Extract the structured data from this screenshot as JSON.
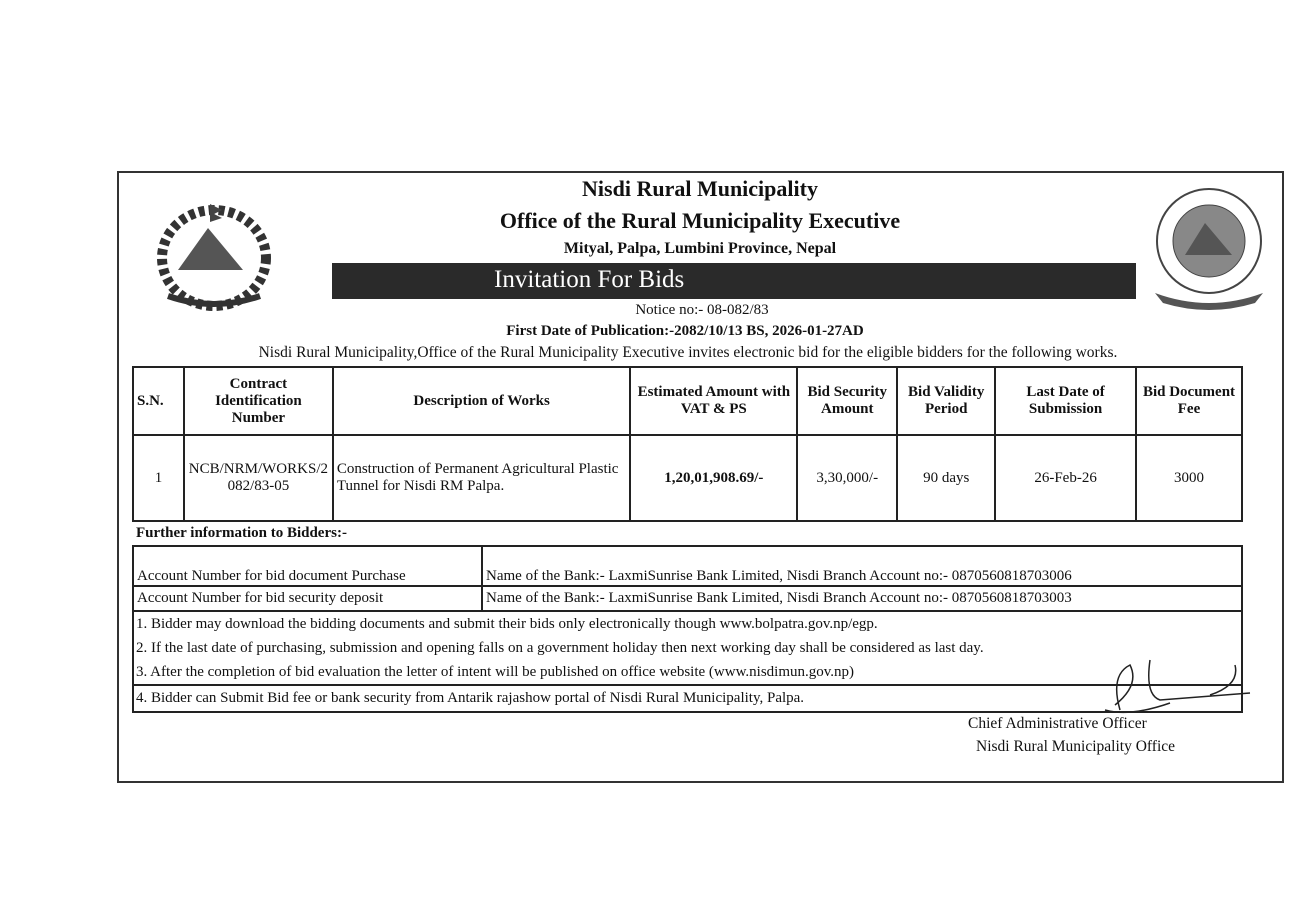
{
  "header": {
    "org": "Nisdi Rural Municipality",
    "office": "Office of the Rural Municipality Executive",
    "address": "Mityal, Palpa, Lumbini Province, Nepal",
    "banner": "Invitation For Bids",
    "notice": "Notice no:- 08-082/83",
    "publication": "First Date of Publication:-2082/10/13 BS, 2026-01-27AD",
    "intro": "Nisdi Rural Municipality,Office of the Rural Municipality Executive invites electronic bid for the eligible bidders for the following works."
  },
  "table": {
    "headers": [
      "S.N.",
      "Contract Identification Number",
      "Description of Works",
      "Estimated Amount with  VAT & PS",
      "Bid Security Amount",
      "Bid Validity Period",
      "Last Date of Submission",
      "Bid Document Fee"
    ],
    "rows": [
      [
        "1",
        "NCB/NRM/WORKS/2082/83-05",
        "Construction of Permanent Agricultural Plastic Tunnel for Nisdi RM Palpa.",
        "1,20,01,908.69/-",
        "3,30,000/-",
        "90 days",
        "26-Feb-26",
        "3000"
      ]
    ]
  },
  "further": {
    "title": "Further information to Bidders:-",
    "accounts": [
      {
        "label": "Account Number for bid document Purchase",
        "value": "Name of the Bank:- LaxmiSunrise Bank Limited, Nisdi Branch Account no:- 0870560818703006"
      },
      {
        "label": "Account Number for bid security deposit",
        "value": "Name of the Bank:- LaxmiSunrise Bank Limited, Nisdi Branch Account no:- 0870560818703003"
      }
    ],
    "notes": [
      "1. Bidder may download the bidding documents and submit their bids only electronically though www.bolpatra.gov.np/egp.",
      "2. If the last date of purchasing, submission and opening falls on a government holiday then next working day shall be considered as last day.",
      "3. After the completion of bid evaluation the letter of intent will be published on office website (www.nisdimun.gov.np)",
      "4. Bidder can Submit Bid fee or bank security from Antarik rajashow portal of Nisdi Rural Municipality, Palpa."
    ]
  },
  "signature": {
    "title": "Chief Administrative Officer",
    "office": "Nisdi Rural Municipality Office"
  },
  "logos": {
    "left": "nepal-emblem",
    "right": "Nisdi Rural Municipality Palpa"
  }
}
